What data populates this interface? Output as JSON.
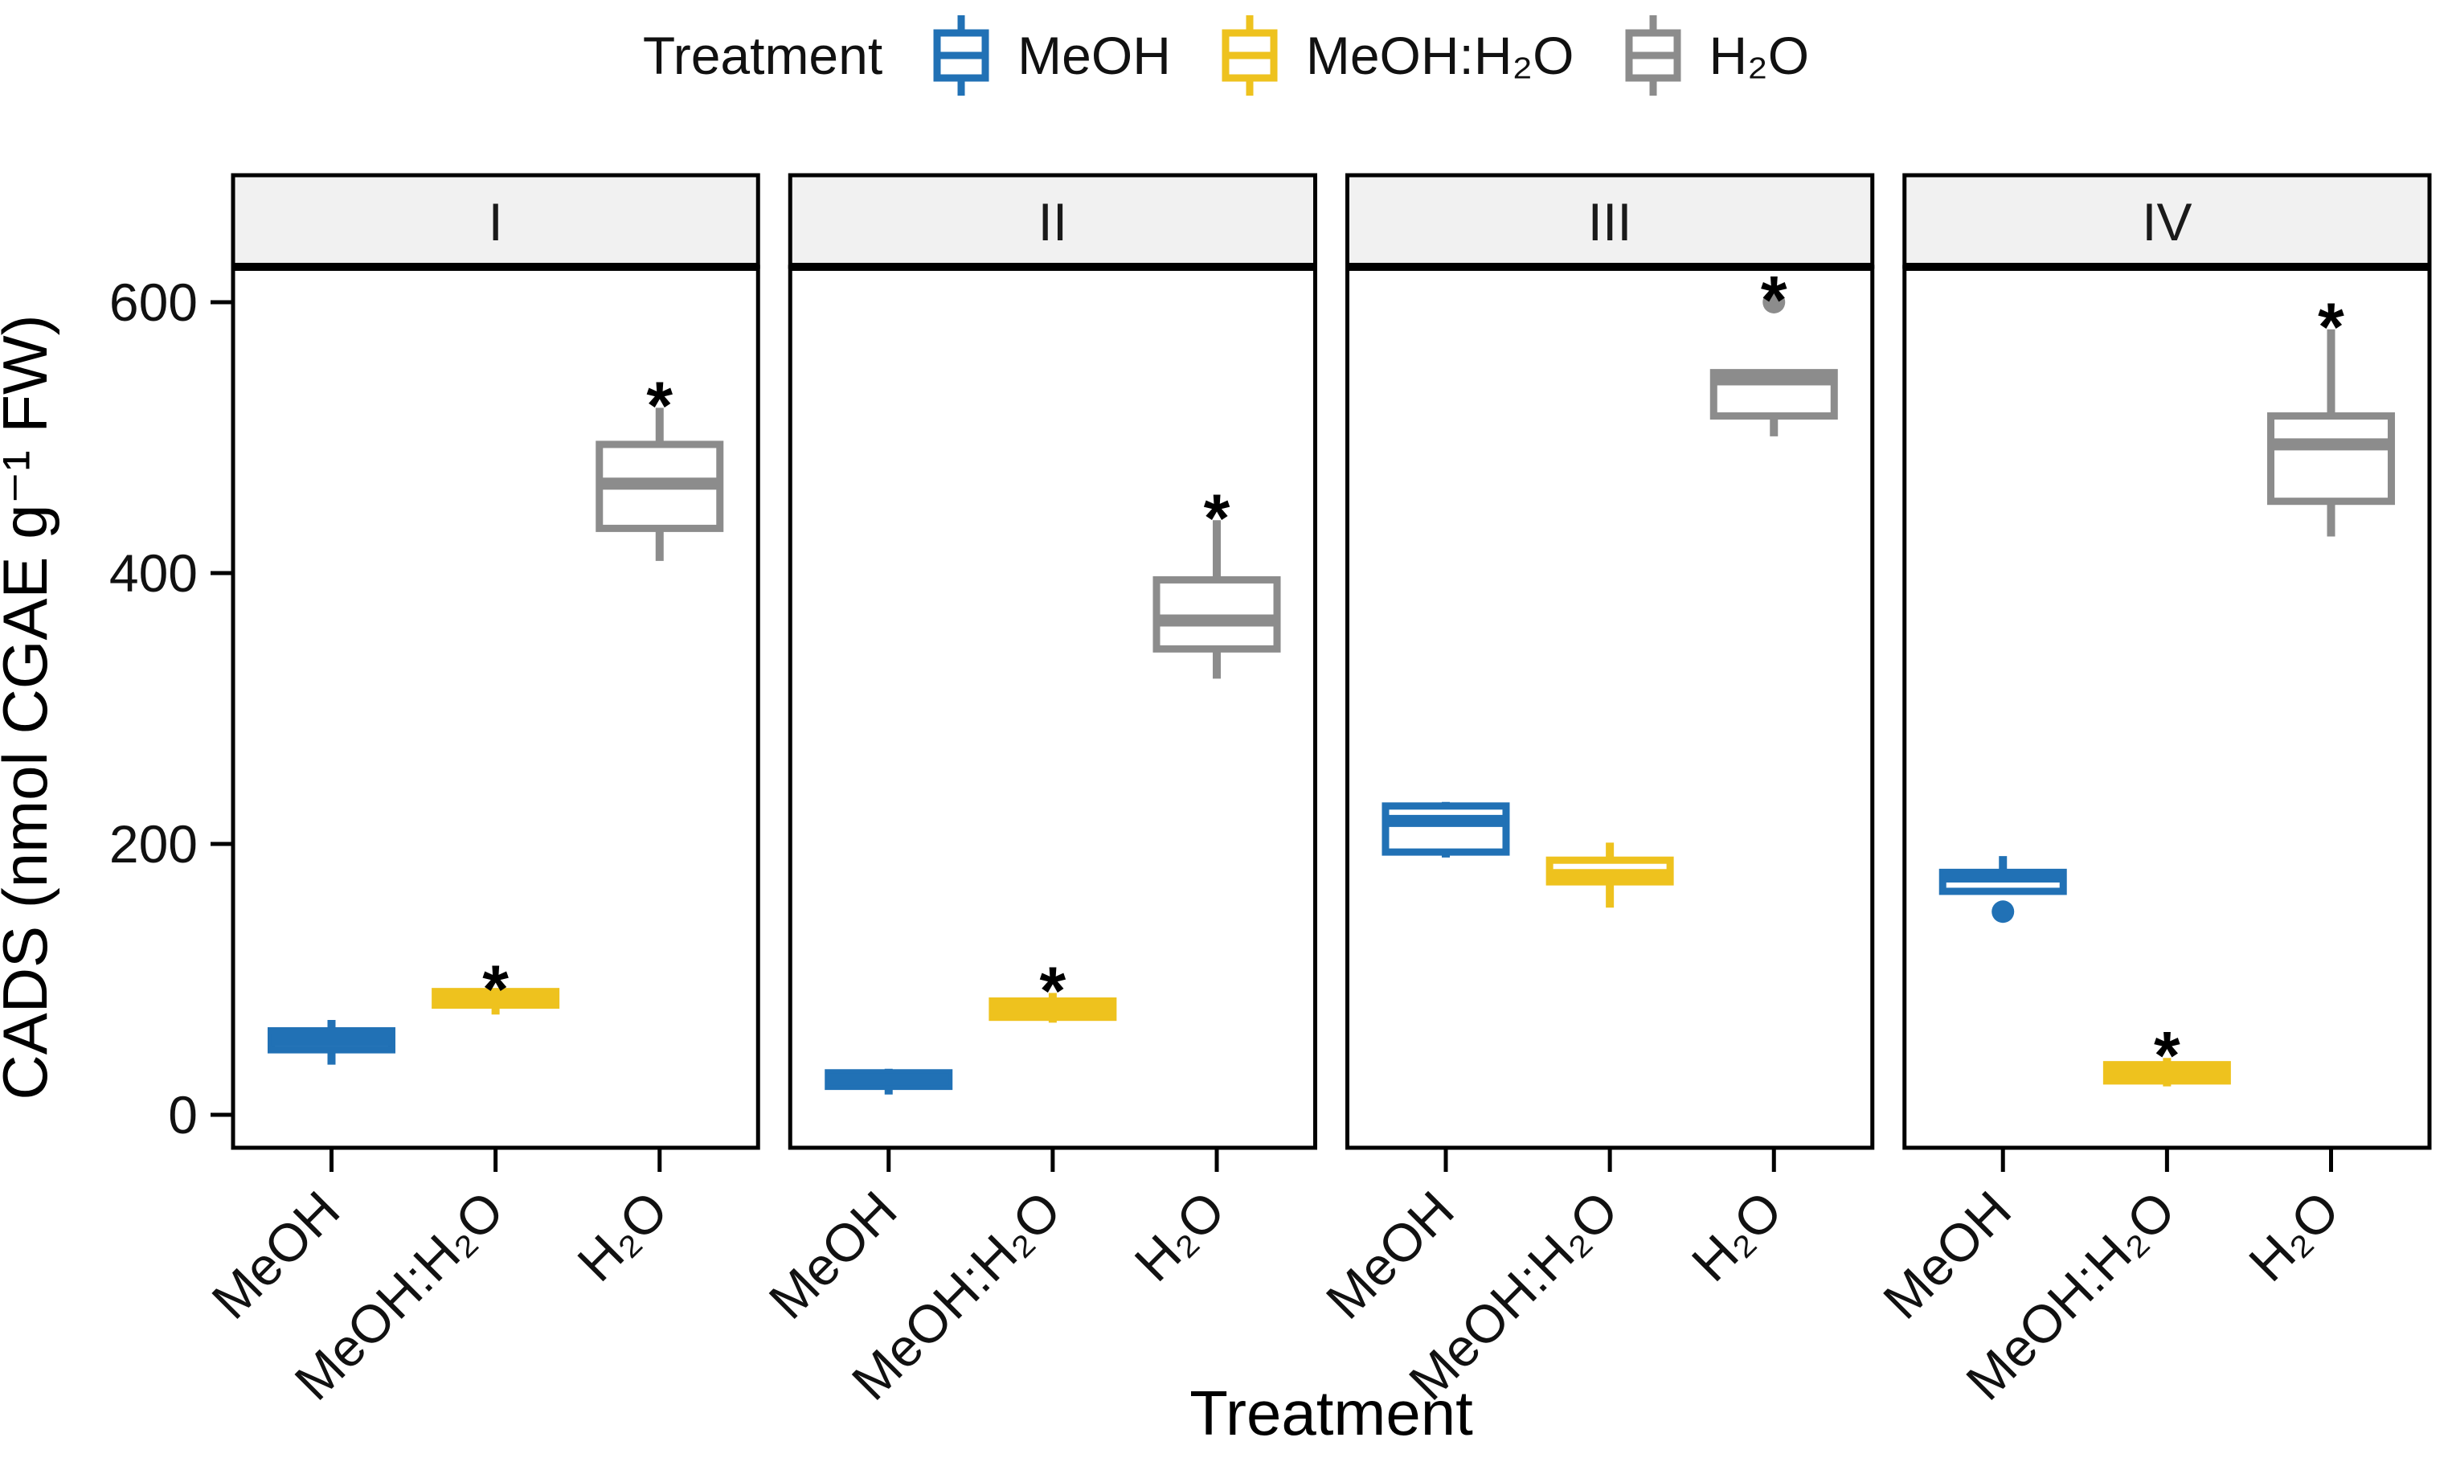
{
  "chart_data": {
    "type": "boxplot",
    "title": "",
    "legend_title": "Treatment",
    "legend_position": "top",
    "xlabel": "Treatment",
    "ylabel": "CADS (nmol CGAE g⁻¹ FW)",
    "yticks": [
      0,
      200,
      400,
      600
    ],
    "ylim": [
      -25,
      626
    ],
    "grid": false,
    "categories": [
      "MeOH",
      "MeOH:H₂O",
      "H₂O"
    ],
    "treatments": [
      {
        "name": "MeOH",
        "color": "#2171B5"
      },
      {
        "name": "MeOH:H₂O",
        "color": "#EEC21E"
      },
      {
        "name": "H₂O",
        "color": "#8C8C8C"
      }
    ],
    "panel_strip_bg": "#F1F1F1",
    "significance_marker": "*",
    "facets": [
      {
        "label": "I",
        "boxes": [
          {
            "treatment": "MeOH",
            "whisker_low": 37,
            "q1": 48,
            "median": 55,
            "q3": 62,
            "whisker_high": 70,
            "outliers": [],
            "significant": false
          },
          {
            "treatment": "MeOH:H₂O",
            "whisker_low": 74,
            "q1": 81,
            "median": 86,
            "q3": 91,
            "whisker_high": 91,
            "outliers": [],
            "significant": true
          },
          {
            "treatment": "H₂O",
            "whisker_low": 409,
            "q1": 433,
            "median": 466,
            "q3": 495,
            "whisker_high": 522,
            "outliers": [],
            "significant": true
          }
        ]
      },
      {
        "label": "II",
        "boxes": [
          {
            "treatment": "MeOH",
            "whisker_low": 15,
            "q1": 21,
            "median": 26,
            "q3": 31,
            "whisker_high": 34,
            "outliers": [],
            "significant": false
          },
          {
            "treatment": "MeOH:H₂O",
            "whisker_low": 68,
            "q1": 72,
            "median": 78,
            "q3": 84,
            "whisker_high": 90,
            "outliers": [],
            "significant": true
          },
          {
            "treatment": "H₂O",
            "whisker_low": 322,
            "q1": 344,
            "median": 365,
            "q3": 395,
            "whisker_high": 439,
            "outliers": [],
            "significant": true
          }
        ]
      },
      {
        "label": "III",
        "boxes": [
          {
            "treatment": "MeOH",
            "whisker_low": 190,
            "q1": 194,
            "median": 217,
            "q3": 228,
            "whisker_high": 231,
            "outliers": [],
            "significant": false
          },
          {
            "treatment": "MeOH:H₂O",
            "whisker_low": 153,
            "q1": 172,
            "median": 177,
            "q3": 188,
            "whisker_high": 201,
            "outliers": [],
            "significant": false
          },
          {
            "treatment": "H₂O",
            "whisker_low": 501,
            "q1": 516,
            "median": 543,
            "q3": 548,
            "whisker_high": 548,
            "outliers": [
              600
            ],
            "significant": true
          }
        ]
      },
      {
        "label": "IV",
        "boxes": [
          {
            "treatment": "MeOH",
            "whisker_low": 165,
            "q1": 165,
            "median": 176,
            "q3": 179,
            "whisker_high": 191,
            "outliers": [
              150
            ],
            "significant": false
          },
          {
            "treatment": "MeOH:H₂O",
            "whisker_low": 21,
            "q1": 25,
            "median": 31,
            "q3": 37,
            "whisker_high": 42,
            "outliers": [],
            "significant": true
          },
          {
            "treatment": "H₂O",
            "whisker_low": 427,
            "q1": 453,
            "median": 495,
            "q3": 516,
            "whisker_high": 580,
            "outliers": [],
            "significant": true
          }
        ]
      }
    ]
  }
}
